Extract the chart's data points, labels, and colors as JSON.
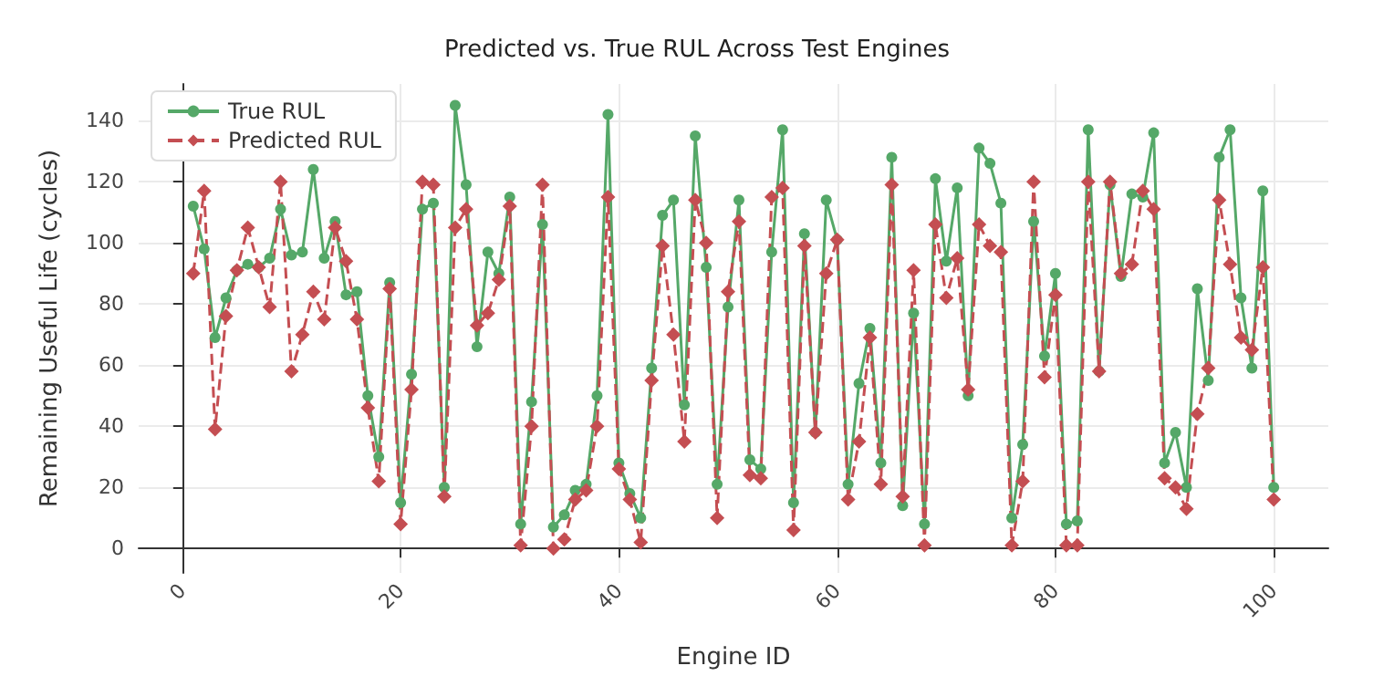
{
  "chart_data": {
    "type": "line",
    "title": "Predicted vs. True RUL Across Test Engines",
    "xlabel": "Engine ID",
    "ylabel": "Remaining Useful Life (cycles)",
    "x": [
      1,
      2,
      3,
      4,
      5,
      6,
      7,
      8,
      9,
      10,
      11,
      12,
      13,
      14,
      15,
      16,
      17,
      18,
      19,
      20,
      21,
      22,
      23,
      24,
      25,
      26,
      27,
      28,
      29,
      30,
      31,
      32,
      33,
      34,
      35,
      36,
      37,
      38,
      39,
      40,
      41,
      42,
      43,
      44,
      45,
      46,
      47,
      48,
      49,
      50,
      51,
      52,
      53,
      54,
      55,
      56,
      57,
      58,
      59,
      60,
      61,
      62,
      63,
      64,
      65,
      66,
      67,
      68,
      69,
      70,
      71,
      72,
      73,
      74,
      75,
      76,
      77,
      78,
      79,
      80,
      81,
      82,
      83,
      84,
      85,
      86,
      87,
      88,
      89,
      90,
      91,
      92,
      93,
      94,
      95,
      96,
      97,
      98,
      99,
      100
    ],
    "series": [
      {
        "name": "True RUL",
        "color": "#55a868",
        "marker": "circle",
        "line_style": "solid",
        "values": [
          112,
          98,
          69,
          82,
          91,
          93,
          92,
          95,
          111,
          96,
          97,
          124,
          95,
          107,
          83,
          84,
          50,
          30,
          87,
          15,
          57,
          111,
          113,
          20,
          145,
          119,
          66,
          97,
          90,
          115,
          8,
          48,
          106,
          7,
          11,
          19,
          21,
          50,
          142,
          28,
          18,
          10,
          59,
          109,
          114,
          47,
          135,
          92,
          21,
          79,
          114,
          29,
          26,
          97,
          137,
          15,
          103,
          38,
          114,
          101,
          21,
          54,
          72,
          28,
          128,
          14,
          77,
          8,
          121,
          94,
          118,
          50,
          131,
          126,
          113,
          10,
          34,
          107,
          63,
          90,
          8,
          9,
          137,
          58,
          119,
          89,
          116,
          115,
          136,
          28,
          38,
          20,
          85,
          55,
          128,
          137,
          82,
          59,
          117,
          20
        ]
      },
      {
        "name": "Predicted RUL",
        "color": "#c44e52",
        "marker": "diamond",
        "line_style": "dashed",
        "values": [
          90,
          117,
          39,
          76,
          91,
          105,
          92,
          79,
          120,
          58,
          70,
          84,
          75,
          105,
          94,
          75,
          46,
          22,
          85,
          8,
          52,
          120,
          119,
          17,
          105,
          111,
          73,
          77,
          88,
          112,
          1,
          40,
          119,
          0,
          3,
          16,
          19,
          40,
          115,
          26,
          16,
          2,
          55,
          99,
          70,
          35,
          114,
          100,
          10,
          84,
          107,
          24,
          23,
          115,
          118,
          6,
          99,
          38,
          90,
          101,
          16,
          35,
          69,
          21,
          119,
          17,
          91,
          1,
          106,
          82,
          95,
          52,
          106,
          99,
          97,
          1,
          22,
          120,
          56,
          83,
          1,
          1,
          120,
          58,
          120,
          90,
          93,
          117,
          111,
          23,
          20,
          13,
          44,
          59,
          114,
          93,
          69,
          65,
          92,
          16
        ]
      }
    ],
    "xlim": [
      -4,
      105
    ],
    "xticks": [
      0,
      20,
      40,
      60,
      80,
      100
    ],
    "ylim": [
      -8,
      152
    ],
    "yticks": [
      0,
      20,
      40,
      60,
      80,
      100,
      120,
      140
    ],
    "grid": true,
    "legend": "top left"
  }
}
